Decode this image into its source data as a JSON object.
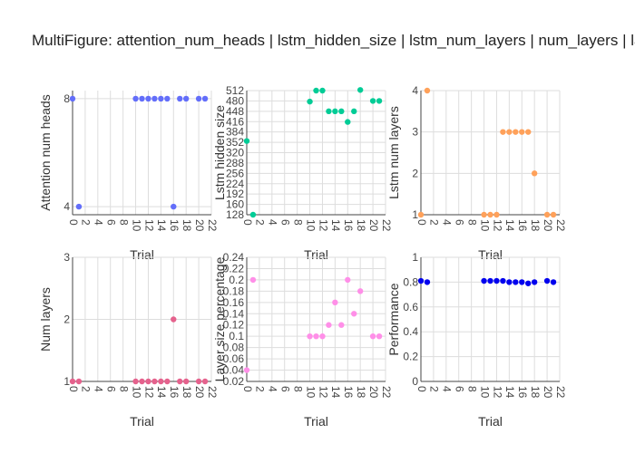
{
  "figure": {
    "title": "MultiFigure: attention_num_heads | lstm_hidden_size | lstm_num_layers | num_layers | layer_size_percentage"
  },
  "chart_data": [
    {
      "type": "scatter",
      "xlabel": "Trial",
      "ylabel": "Attention num heads",
      "xlim": [
        0,
        22
      ],
      "ylim": [
        3.7,
        8.3
      ],
      "xticks": [
        0,
        2,
        4,
        6,
        8,
        10,
        12,
        14,
        16,
        18,
        20,
        22
      ],
      "yticks": [
        4,
        8
      ],
      "color": "#636efa",
      "x": [
        0,
        1,
        10,
        11,
        12,
        13,
        14,
        15,
        16,
        17,
        18,
        20,
        21
      ],
      "y": [
        8,
        4,
        8,
        8,
        8,
        8,
        8,
        8,
        4,
        8,
        8,
        8,
        8
      ]
    },
    {
      "type": "scatter",
      "xlabel": "Trial",
      "ylabel": "Lstm hidden size",
      "xlim": [
        0,
        22
      ],
      "ylim": [
        128,
        512
      ],
      "xticks": [
        0,
        2,
        4,
        6,
        8,
        10,
        12,
        14,
        16,
        18,
        20,
        22
      ],
      "yticks": [
        128,
        160,
        192,
        224,
        256,
        288,
        320,
        352,
        384,
        416,
        448,
        480,
        512
      ],
      "color": "#00cc96",
      "x": [
        0,
        1,
        10,
        11,
        12,
        13,
        14,
        15,
        16,
        17,
        18,
        20,
        21
      ],
      "y": [
        356,
        128,
        478,
        512,
        512,
        448,
        448,
        448,
        415,
        448,
        514,
        480,
        480
      ]
    },
    {
      "type": "scatter",
      "xlabel": "Trial",
      "ylabel": "Lstm num layers",
      "xlim": [
        0,
        22
      ],
      "ylim": [
        1,
        4
      ],
      "xticks": [
        0,
        2,
        4,
        6,
        8,
        10,
        12,
        14,
        16,
        18,
        20,
        22
      ],
      "yticks": [
        1,
        2,
        3,
        4
      ],
      "color": "#ffa15a",
      "x": [
        0,
        1,
        10,
        11,
        12,
        13,
        14,
        15,
        16,
        17,
        18,
        20,
        21
      ],
      "y": [
        1,
        4,
        1,
        1,
        1,
        3,
        3,
        3,
        3,
        3,
        2,
        1,
        1
      ]
    },
    {
      "type": "scatter",
      "xlabel": "Trial",
      "ylabel": "Num layers",
      "xlim": [
        0,
        22
      ],
      "ylim": [
        1,
        3
      ],
      "xticks": [
        0,
        2,
        4,
        6,
        8,
        10,
        12,
        14,
        16,
        18,
        20,
        22
      ],
      "yticks": [
        1,
        2,
        3
      ],
      "color": "#e5628d",
      "x": [
        0,
        1,
        10,
        11,
        12,
        13,
        14,
        15,
        16,
        17,
        18,
        20,
        21
      ],
      "y": [
        1,
        1,
        1,
        1,
        1,
        1,
        1,
        1,
        2,
        1,
        1,
        1,
        1
      ]
    },
    {
      "type": "scatter",
      "xlabel": "Trial",
      "ylabel": "Layer size percentage",
      "xlim": [
        0,
        22
      ],
      "ylim": [
        0.02,
        0.24
      ],
      "xticks": [
        0,
        2,
        4,
        6,
        8,
        10,
        12,
        14,
        16,
        18,
        20,
        22
      ],
      "yticks": [
        0.02,
        0.04,
        0.06,
        0.08,
        0.1,
        0.12,
        0.14,
        0.16,
        0.18,
        0.2,
        0.22,
        0.24
      ],
      "color": "#ff8fe8",
      "x": [
        0,
        1,
        10,
        11,
        12,
        13,
        14,
        15,
        16,
        17,
        18,
        20,
        21
      ],
      "y": [
        0.04,
        0.2,
        0.1,
        0.1,
        0.1,
        0.12,
        0.16,
        0.12,
        0.2,
        0.14,
        0.18,
        0.1,
        0.1
      ]
    },
    {
      "type": "scatter",
      "xlabel": "Trial",
      "ylabel": "Performance",
      "xlim": [
        0,
        22
      ],
      "ylim": [
        0,
        1
      ],
      "xticks": [
        0,
        2,
        4,
        6,
        8,
        10,
        12,
        14,
        16,
        18,
        20,
        22
      ],
      "yticks": [
        0,
        0.2,
        0.4,
        0.6,
        0.8,
        1
      ],
      "color": "#0000ee",
      "x": [
        0,
        1,
        10,
        11,
        12,
        13,
        14,
        15,
        16,
        17,
        18,
        20,
        21
      ],
      "y": [
        0.81,
        0.8,
        0.81,
        0.81,
        0.81,
        0.81,
        0.8,
        0.8,
        0.8,
        0.79,
        0.8,
        0.81,
        0.8
      ]
    }
  ]
}
